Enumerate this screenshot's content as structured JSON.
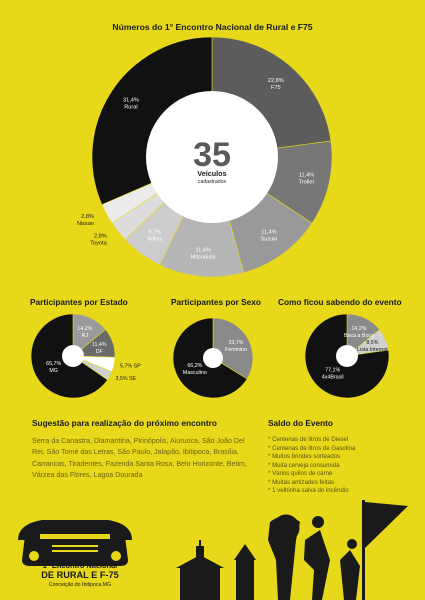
{
  "title": "Números do 1° Encontro Nacional de Rural e F75",
  "center": {
    "number": "35",
    "label1": "Veículos",
    "label2": "cadastrados"
  },
  "colors": {
    "background": "#e7d81a",
    "dark": "#111111",
    "white": "#ffffff"
  },
  "chart_data": [
    {
      "type": "pie",
      "title": "Números do 1° Encontro Nacional de Rural e F75",
      "slices": [
        {
          "label": "F75",
          "value": 22.8,
          "display": "22,8%",
          "color": "#5c5c5c"
        },
        {
          "label": "Troller",
          "value": 11.4,
          "display": "11,4%",
          "color": "#777777"
        },
        {
          "label": "Suzuki",
          "value": 11.4,
          "display": "11,4%",
          "color": "#999999"
        },
        {
          "label": "Mitsubishi",
          "value": 11.4,
          "display": "11,4%",
          "color": "#b5b5b5"
        },
        {
          "label": "Willys",
          "value": 5.7,
          "display": "5,7%",
          "color": "#cccccc"
        },
        {
          "label": "Toyota",
          "value": 2.8,
          "display": "2,8%",
          "color": "#dcdcdc"
        },
        {
          "label": "Nissan",
          "value": 2.8,
          "display": "2,8%",
          "color": "#ebebeb"
        },
        {
          "label": "Rural",
          "value": 31.4,
          "display": "31,4%",
          "color": "#111111"
        }
      ]
    },
    {
      "type": "pie",
      "title": "Participantes por Estado",
      "slices": [
        {
          "label": "RJ",
          "value": 14.2,
          "display": "14,2%",
          "color": "#9a9a9a"
        },
        {
          "label": "DF",
          "value": 11.4,
          "display": "11,4%",
          "color": "#6a6a6a"
        },
        {
          "label": "SP",
          "value": 5.7,
          "display": "5,7%",
          "color": "#ffffff"
        },
        {
          "label": "SE",
          "value": 3.5,
          "display": "3,5%",
          "color": "#cfcfcf"
        },
        {
          "label": "MG",
          "value": 65.7,
          "display": "65,7%",
          "color": "#111111"
        }
      ]
    },
    {
      "type": "pie",
      "title": "Participantes por Sexo",
      "slices": [
        {
          "label": "Feminino",
          "value": 33.7,
          "display": "33,7%",
          "color": "#8a8a8a"
        },
        {
          "label": "Masculino",
          "value": 66.2,
          "display": "66,2%",
          "color": "#111111"
        }
      ]
    },
    {
      "type": "pie",
      "title": "Como ficou sabendo do evento",
      "slices": [
        {
          "label": "Boca a Boca",
          "value": 14.2,
          "display": "14,2%",
          "color": "#8a8a8a"
        },
        {
          "label": "Lista Internet",
          "value": 8.5,
          "display": "8,5%",
          "color": "#d0d0d0"
        },
        {
          "label": "4x4Brasil",
          "value": 77.1,
          "display": "77,1%",
          "color": "#111111"
        }
      ]
    }
  ],
  "suggestions": {
    "title": "Sugestão para realização do próximo encontro",
    "text": "Serra da Canastra, Diamantina, Pirinópolis, Aiuruoca, São João Del Rei, São Tomé das Letras, São Paulo, Jalapão, Ibitipoca, Brasília, Carrancas, Tiradentes, Fazenda Santa Rosa, Belo Horizonte, Betim, Várzea das Flores, Lagoa Dourada"
  },
  "balance": {
    "title": "Saldo do Evento",
    "items": [
      "Centenas de litros de Diesel",
      "Centenas de litros de Gasolina",
      "Muitos brindes sorteados",
      "Muita cerveja consumida",
      "Vários quilos de carne",
      "Muitas amizades feitas",
      "1 velhinha salva do incêndio"
    ]
  },
  "logo": {
    "line1": "1° Encontro Nacional",
    "line2": "DE RURAL E F-75",
    "line3": "Conceição do Ibitipoca MG"
  }
}
